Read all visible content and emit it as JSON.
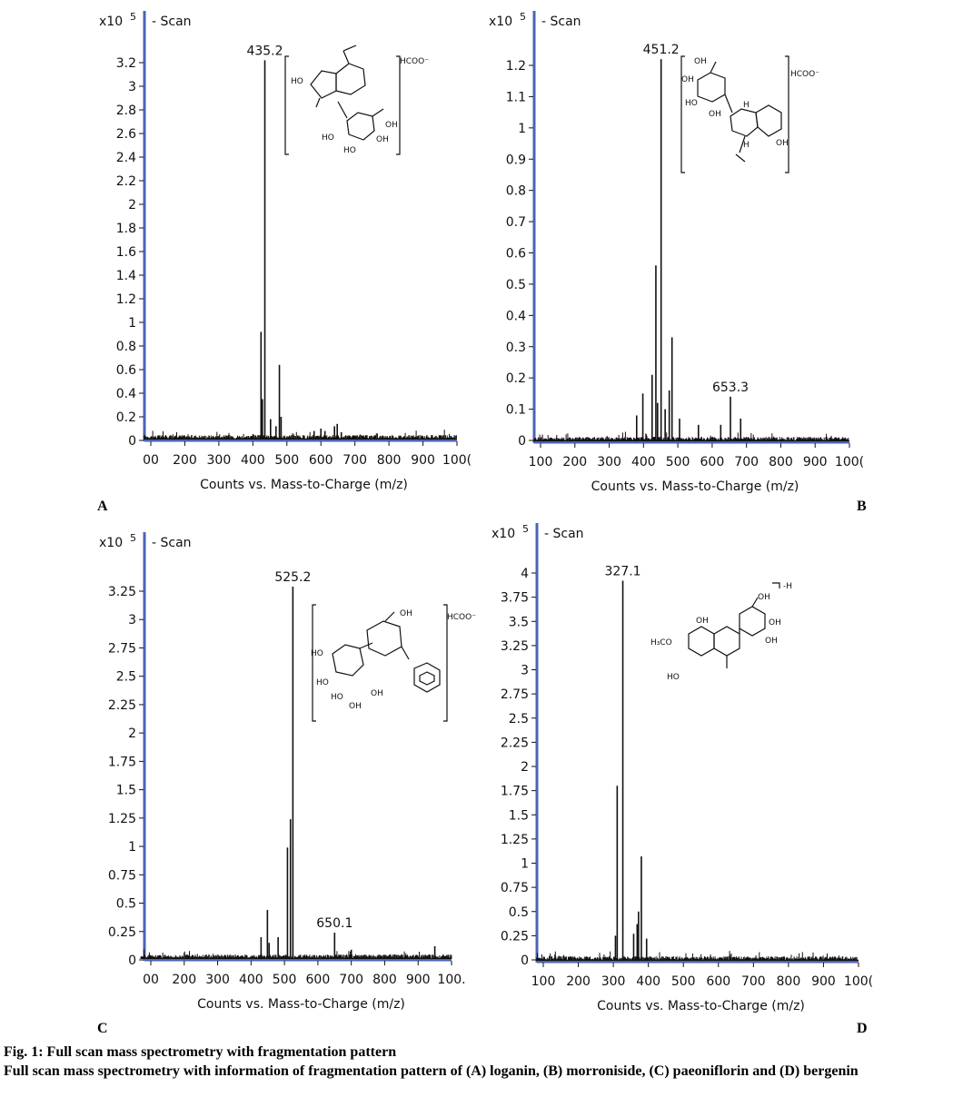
{
  "chart_data": [
    {
      "type": "bar",
      "panel_label": "A",
      "exp_label": "x10",
      "exp_sup": "5",
      "legend": "Scan",
      "xlabel": "Counts vs. Mass-to-Charge (m/z)",
      "xlim": [
        75,
        1015
      ],
      "ylim": [
        0,
        3.35
      ],
      "xticks": [
        "00",
        "200",
        "300",
        "400",
        "500",
        "600",
        "700",
        "800",
        "900",
        "100("
      ],
      "xtick_values": [
        100,
        200,
        300,
        400,
        500,
        600,
        700,
        800,
        900,
        1000
      ],
      "yticks": [
        "0",
        "0.2",
        "0.4",
        "0.6",
        "0.8",
        "1",
        "1.2",
        "1.4",
        "1.6",
        "1.8",
        "2",
        "2.2",
        "2.4",
        "2.6",
        "2.8",
        "3",
        "3.2"
      ],
      "ytick_values": [
        0,
        0.2,
        0.4,
        0.6,
        0.8,
        1,
        1.2,
        1.4,
        1.6,
        1.8,
        2,
        2.2,
        2.4,
        2.6,
        2.8,
        3,
        3.2
      ],
      "peaks": [
        [
          424,
          0.92
        ],
        [
          428,
          0.35
        ],
        [
          435.2,
          3.22
        ],
        [
          452,
          0.18
        ],
        [
          468,
          0.12
        ],
        [
          478,
          0.64
        ],
        [
          483,
          0.2
        ],
        [
          580,
          0.08
        ],
        [
          600,
          0.1
        ],
        [
          612,
          0.08
        ],
        [
          640,
          0.12
        ],
        [
          648,
          0.14
        ],
        [
          660,
          0.07
        ]
      ],
      "peak_labels": [
        {
          "x": 435.2,
          "y": 3.22,
          "text": "435.2"
        }
      ],
      "structure": "loganin"
    },
    {
      "type": "bar",
      "panel_label": "B",
      "exp_label": "x10",
      "exp_sup": "5",
      "legend": "Scan",
      "xlabel": "Counts vs. Mass-to-Charge (m/z)",
      "xlim": [
        75,
        1015
      ],
      "ylim": [
        0,
        1.25
      ],
      "xticks": [
        "100",
        "200",
        "300",
        "400",
        "500",
        "600",
        "700",
        "800",
        "900",
        "100("
      ],
      "xtick_values": [
        100,
        200,
        300,
        400,
        500,
        600,
        700,
        800,
        900,
        1000
      ],
      "yticks": [
        "0",
        "0.1",
        "0.2",
        "0.3",
        "0.4",
        "0.5",
        "0.6",
        "0.7",
        "0.8",
        "0.9",
        "1",
        "1.1",
        "1.2"
      ],
      "ytick_values": [
        0,
        0.1,
        0.2,
        0.3,
        0.4,
        0.5,
        0.6,
        0.7,
        0.8,
        0.9,
        1,
        1.1,
        1.2
      ],
      "peaks": [
        [
          380,
          0.08
        ],
        [
          398,
          0.15
        ],
        [
          425,
          0.21
        ],
        [
          436,
          0.56
        ],
        [
          441,
          0.12
        ],
        [
          451.2,
          1.22
        ],
        [
          463,
          0.1
        ],
        [
          475,
          0.16
        ],
        [
          483,
          0.33
        ],
        [
          505,
          0.07
        ],
        [
          560,
          0.05
        ],
        [
          625,
          0.05
        ],
        [
          653.3,
          0.14
        ],
        [
          683,
          0.07
        ]
      ],
      "peak_labels": [
        {
          "x": 451.2,
          "y": 1.22,
          "text": "451.2"
        },
        {
          "x": 653.3,
          "y": 0.14,
          "text": "653.3"
        }
      ],
      "structure": "morroniside"
    },
    {
      "type": "bar",
      "panel_label": "C",
      "exp_label": "x10",
      "exp_sup": "5",
      "legend": "Scan",
      "xlabel": "Counts vs. Mass-to-Charge (m/z)",
      "xlim": [
        65,
        1015
      ],
      "ylim": [
        0,
        3.4
      ],
      "xticks": [
        "00",
        "200",
        "300",
        "400",
        "500",
        "600",
        "700",
        "800",
        "900",
        "100."
      ],
      "xtick_values": [
        100,
        200,
        300,
        400,
        500,
        600,
        700,
        800,
        900,
        1000
      ],
      "yticks": [
        "0",
        "0.25",
        "0.5",
        "0.75",
        "1",
        "1.25",
        "1.5",
        "1.75",
        "2",
        "2.25",
        "2.5",
        "2.75",
        "3",
        "3.25"
      ],
      "ytick_values": [
        0,
        0.25,
        0.5,
        0.75,
        1,
        1.25,
        1.5,
        1.75,
        2,
        2.25,
        2.5,
        2.75,
        3,
        3.25
      ],
      "peaks": [
        [
          430,
          0.2
        ],
        [
          449,
          0.44
        ],
        [
          454,
          0.15
        ],
        [
          481,
          0.2
        ],
        [
          509,
          0.99
        ],
        [
          518,
          1.24
        ],
        [
          525.2,
          3.29
        ],
        [
          650.1,
          0.24
        ],
        [
          700,
          0.09
        ],
        [
          950,
          0.12
        ]
      ],
      "peak_labels": [
        {
          "x": 525.2,
          "y": 3.29,
          "text": "525.2"
        },
        {
          "x": 650.1,
          "y": 0.24,
          "text": "650.1"
        }
      ],
      "structure": "paeoniflorin"
    },
    {
      "type": "bar",
      "panel_label": "D",
      "exp_label": "x10",
      "exp_sup": "5",
      "legend": "Scan",
      "xlabel": "Counts vs. Mass-to-Charge (m/z)",
      "xlim": [
        75,
        1015
      ],
      "ylim": [
        0,
        4.05
      ],
      "xticks": [
        "100",
        "200",
        "300",
        "400",
        "500",
        "600",
        "700",
        "800",
        "900",
        "100("
      ],
      "xtick_values": [
        100,
        200,
        300,
        400,
        500,
        600,
        700,
        800,
        900,
        1000
      ],
      "yticks": [
        "0",
        "0.25",
        "0.5",
        "0.75",
        "1",
        "1.25",
        "1.5",
        "1.75",
        "2",
        "2.25",
        "2.5",
        "2.75",
        "3",
        "3.25",
        "3.5",
        "3.75",
        "4"
      ],
      "ytick_values": [
        0,
        0.25,
        0.5,
        0.75,
        1,
        1.25,
        1.5,
        1.75,
        2,
        2.25,
        2.5,
        2.75,
        3,
        3.25,
        3.5,
        3.75,
        4
      ],
      "peaks": [
        [
          306,
          0.25
        ],
        [
          311,
          1.8
        ],
        [
          327.1,
          3.92
        ],
        [
          358,
          0.27
        ],
        [
          368,
          0.37
        ],
        [
          372,
          0.5
        ],
        [
          380,
          1.07
        ],
        [
          395,
          0.22
        ]
      ],
      "peak_labels": [
        {
          "x": 327.1,
          "y": 3.92,
          "text": "327.1"
        }
      ],
      "structure": "bergenin"
    }
  ],
  "structures": {
    "loganin": {
      "labels": [
        "HO",
        "HO",
        "HO",
        "OH",
        "OH",
        "HCOO⁻"
      ]
    },
    "morroniside": {
      "labels": [
        "OH",
        "OH",
        "HO",
        "OH",
        "H",
        "H",
        "OH",
        "HCOO⁻"
      ]
    },
    "paeoniflorin": {
      "labels": [
        "OH",
        "HO",
        "HO",
        "HO",
        "OH",
        "OH",
        "HCOO⁻"
      ]
    },
    "bergenin": {
      "labels": [
        "OH",
        "OH",
        "OH",
        "OH",
        "H₃CO",
        "HO",
        "-H"
      ]
    }
  },
  "caption": {
    "title": "Fig. 1: Full scan mass spectrometry with fragmentation pattern",
    "body": "Full scan mass spectrometry with information of fragmentation pattern of (A) loganin, (B) morroniside, (C) paeoniflorin and (D) bergenin"
  }
}
